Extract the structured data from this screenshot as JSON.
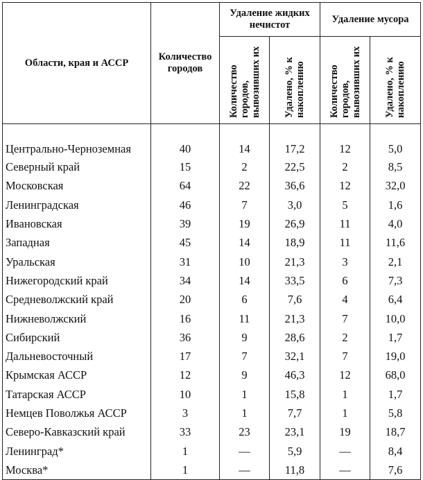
{
  "header": {
    "region": "Области, края и АССР",
    "cities_count": "Количество городов",
    "liquid_group": "Удаление жидких нечистот",
    "garbage_group": "Удаление мусора",
    "liquid_cities": "Количество городов, вывозивших их",
    "liquid_pct": "Удалено, % к накоплению",
    "garbage_cities": "Количество городов, вывозивших их",
    "garbage_pct": "Удалено, % к накоплению"
  },
  "rows": [
    {
      "name": "Центрально-Черноземная",
      "cities": "40",
      "lc": "14",
      "lp": "17,2",
      "gc": "12",
      "gp": "5,0"
    },
    {
      "name": "Северный край",
      "cities": "15",
      "lc": "2",
      "lp": "22,5",
      "gc": "2",
      "gp": "8,5"
    },
    {
      "name": "Московская",
      "cities": "64",
      "lc": "22",
      "lp": "36,6",
      "gc": "12",
      "gp": "32,0"
    },
    {
      "name": "Ленинградская",
      "cities": "46",
      "lc": "7",
      "lp": "3,0",
      "gc": "5",
      "gp": "1,6"
    },
    {
      "name": "Ивановская",
      "cities": "39",
      "lc": "19",
      "lp": "26,9",
      "gc": "11",
      "gp": "4,0"
    },
    {
      "name": "Западная",
      "cities": "45",
      "lc": "14",
      "lp": "18,9",
      "gc": "11",
      "gp": "11,6"
    },
    {
      "name": "Уральская",
      "cities": "31",
      "lc": "10",
      "lp": "21,3",
      "gc": "3",
      "gp": "2,1"
    },
    {
      "name": "Нижегородский край",
      "cities": "34",
      "lc": "14",
      "lp": "33,5",
      "gc": "6",
      "gp": "7,3"
    },
    {
      "name": "Средневолжский край",
      "cities": "20",
      "lc": "6",
      "lp": "7,6",
      "gc": "4",
      "gp": "6,4"
    },
    {
      "name": "Нижневолжский",
      "cities": "16",
      "lc": "11",
      "lp": "21,3",
      "gc": "7",
      "gp": "10,0"
    },
    {
      "name": "Сибирский",
      "cities": "36",
      "lc": "9",
      "lp": "28,6",
      "gc": "2",
      "gp": "1,7"
    },
    {
      "name": "Дальневосточный",
      "cities": "17",
      "lc": "7",
      "lp": "32,1",
      "gc": "7",
      "gp": "19,0"
    },
    {
      "name": "Крымская АССР",
      "cities": "12",
      "lc": "9",
      "lp": "46,3",
      "gc": "12",
      "gp": "68,0"
    },
    {
      "name": "Татарская АССР",
      "cities": "10",
      "lc": "1",
      "lp": "15,8",
      "gc": "1",
      "gp": "1,7"
    },
    {
      "name": "Немцев Поволжья АССР",
      "cities": "3",
      "lc": "1",
      "lp": "7,7",
      "gc": "1",
      "gp": "5,8"
    },
    {
      "name": "Северо-Кавказский край",
      "cities": "33",
      "lc": "23",
      "lp": "23,1",
      "gc": "19",
      "gp": "18,7"
    },
    {
      "name": "Ленинград*",
      "cities": "1",
      "lc": "—",
      "lp": "5,9",
      "gc": "—",
      "gp": "8,4"
    },
    {
      "name": "Москва*",
      "cities": "1",
      "lc": "—",
      "lp": "11,8",
      "gc": "—",
      "gp": "7,6"
    }
  ]
}
